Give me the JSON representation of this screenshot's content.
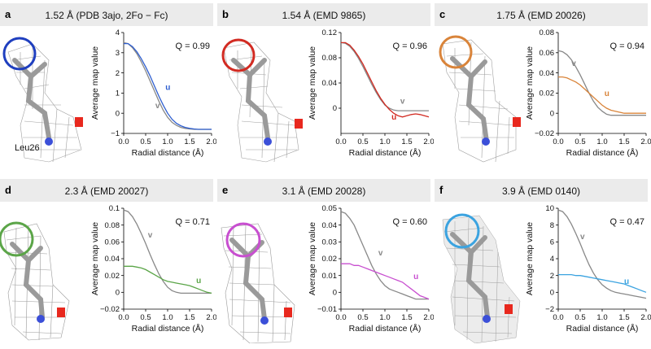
{
  "panels": [
    {
      "letter": "a",
      "title": "1.52 Å (PDB 3ajo, 2Fo − Fc)",
      "residue_label": "Leu26",
      "circle_color": "#1f3fbf",
      "chart_data": {
        "type": "line",
        "xlabel": "Radial distance (Å)",
        "ylabel": "Average map value",
        "xlim": [
          0,
          2
        ],
        "ylim": [
          -1,
          4
        ],
        "xticks": [
          "0.0",
          "0.5",
          "1.0",
          "1.5",
          "2.0"
        ],
        "yticks": [
          "−1",
          "0",
          "1",
          "2",
          "3",
          "4"
        ],
        "q_label": "Q = 0.99",
        "series": [
          {
            "name": "v",
            "color": "#888888",
            "x": [
              0,
              0.1,
              0.2,
              0.3,
              0.4,
              0.5,
              0.6,
              0.7,
              0.8,
              0.9,
              1.0,
              1.1,
              1.2,
              1.3,
              1.4,
              1.5,
              1.6,
              1.7,
              1.8,
              1.9,
              2.0
            ],
            "y": [
              3.5,
              3.45,
              3.25,
              2.95,
              2.55,
              2.1,
              1.6,
              1.1,
              0.6,
              0.15,
              -0.2,
              -0.45,
              -0.6,
              -0.7,
              -0.75,
              -0.78,
              -0.8,
              -0.8,
              -0.8,
              -0.8,
              -0.8
            ],
            "label_x": 0.72,
            "label_y": 0.25
          },
          {
            "name": "u",
            "color": "#2f5fd0",
            "x": [
              0,
              0.1,
              0.2,
              0.3,
              0.4,
              0.5,
              0.6,
              0.7,
              0.8,
              0.9,
              1.0,
              1.1,
              1.2,
              1.3,
              1.4,
              1.5,
              1.6,
              1.7,
              1.8,
              1.9,
              2.0
            ],
            "y": [
              3.45,
              3.45,
              3.3,
              3.05,
              2.7,
              2.3,
              1.85,
              1.35,
              0.85,
              0.4,
              0.0,
              -0.3,
              -0.5,
              -0.62,
              -0.7,
              -0.75,
              -0.78,
              -0.8,
              -0.8,
              -0.8,
              -0.8
            ],
            "label_x": 0.95,
            "label_y": 1.15
          }
        ]
      }
    },
    {
      "letter": "b",
      "title": "1.54 Å (EMD 9865)",
      "circle_color": "#d22b22",
      "chart_data": {
        "type": "line",
        "xlabel": "Radial distance (Å)",
        "ylabel": "Average map value",
        "xlim": [
          0,
          2
        ],
        "ylim": [
          -0.04,
          0.12
        ],
        "xticks": [
          "0.0",
          "0.5",
          "1.0",
          "1.5",
          "2.0"
        ],
        "yticks": [
          "0",
          "0.04",
          "0.08",
          "0.12"
        ],
        "ytick_values": [
          0,
          0.04,
          0.08,
          0.12
        ],
        "q_label": "Q = 0.96",
        "series": [
          {
            "name": "v",
            "color": "#888888",
            "x": [
              0,
              0.1,
              0.2,
              0.3,
              0.4,
              0.5,
              0.6,
              0.7,
              0.8,
              0.9,
              1.0,
              1.1,
              1.2,
              1.3,
              1.4,
              1.5,
              1.6,
              1.7,
              1.8,
              1.9,
              2.0
            ],
            "y": [
              0.104,
              0.103,
              0.098,
              0.09,
              0.079,
              0.066,
              0.052,
              0.038,
              0.025,
              0.014,
              0.005,
              0.0,
              -0.003,
              -0.004,
              -0.004,
              -0.004,
              -0.004,
              -0.004,
              -0.004,
              -0.004,
              -0.004
            ],
            "label_x": 1.35,
            "label_y": 0.007
          },
          {
            "name": "u",
            "color": "#d22b22",
            "x": [
              0,
              0.1,
              0.2,
              0.3,
              0.4,
              0.5,
              0.6,
              0.7,
              0.8,
              0.9,
              1.0,
              1.1,
              1.2,
              1.3,
              1.4,
              1.5,
              1.6,
              1.7,
              1.8,
              1.9,
              2.0
            ],
            "y": [
              0.104,
              0.104,
              0.1,
              0.092,
              0.082,
              0.07,
              0.056,
              0.042,
              0.028,
              0.016,
              0.006,
              -0.002,
              -0.008,
              -0.012,
              -0.014,
              -0.012,
              -0.01,
              -0.009,
              -0.01,
              -0.012,
              -0.014
            ],
            "label_x": 1.15,
            "label_y": -0.018
          }
        ]
      }
    },
    {
      "letter": "c",
      "title": "1.75 Å (EMD 20026)",
      "circle_color": "#d9843a",
      "chart_data": {
        "type": "line",
        "xlabel": "Radial distance (Å)",
        "ylabel": "Average map value",
        "xlim": [
          0,
          2
        ],
        "ylim": [
          -0.02,
          0.08
        ],
        "xticks": [
          "0.0",
          "0.5",
          "1.0",
          "1.5",
          "2.0"
        ],
        "yticks": [
          "−0.02",
          "0",
          "0.02",
          "0.04",
          "0.06",
          "0.08"
        ],
        "ytick_values": [
          -0.02,
          0,
          0.02,
          0.04,
          0.06,
          0.08
        ],
        "q_label": "Q = 0.94",
        "series": [
          {
            "name": "v",
            "color": "#888888",
            "x": [
              0,
              0.1,
              0.2,
              0.3,
              0.4,
              0.5,
              0.6,
              0.7,
              0.8,
              0.9,
              1.0,
              1.1,
              1.2,
              1.3,
              1.4,
              1.5,
              1.6,
              1.7,
              1.8,
              1.9,
              2.0
            ],
            "y": [
              0.062,
              0.061,
              0.058,
              0.053,
              0.046,
              0.038,
              0.029,
              0.02,
              0.012,
              0.006,
              0.002,
              -0.001,
              -0.002,
              -0.002,
              -0.002,
              -0.002,
              -0.002,
              -0.002,
              -0.002,
              -0.002,
              -0.002
            ],
            "label_x": 0.3,
            "label_y": 0.047
          },
          {
            "name": "u",
            "color": "#d9843a",
            "x": [
              0,
              0.1,
              0.2,
              0.3,
              0.4,
              0.5,
              0.6,
              0.7,
              0.8,
              0.9,
              1.0,
              1.1,
              1.2,
              1.3,
              1.4,
              1.5,
              1.6,
              1.7,
              1.8,
              1.9,
              2.0
            ],
            "y": [
              0.036,
              0.036,
              0.035,
              0.033,
              0.031,
              0.028,
              0.024,
              0.02,
              0.016,
              0.012,
              0.008,
              0.005,
              0.003,
              0.002,
              0.001,
              0.0,
              0.0,
              0.0,
              0.0,
              0.0,
              0.0
            ],
            "label_x": 1.05,
            "label_y": 0.017
          }
        ]
      }
    },
    {
      "letter": "d",
      "title": "2.3 Å (EMD 20027)",
      "circle_color": "#5ba548",
      "chart_data": {
        "type": "line",
        "xlabel": "Radial distance (Å)",
        "ylabel": "Average map value",
        "xlim": [
          0,
          2
        ],
        "ylim": [
          -0.02,
          0.1
        ],
        "xticks": [
          "0.0",
          "0.5",
          "1.0",
          "1.5",
          "2.0"
        ],
        "yticks": [
          "−0.02",
          "0",
          "0.02",
          "0.04",
          "0.06",
          "0.08",
          "0.1"
        ],
        "ytick_values": [
          -0.02,
          0,
          0.02,
          0.04,
          0.06,
          0.08,
          0.1
        ],
        "q_label": "Q = 0.71",
        "series": [
          {
            "name": "v",
            "color": "#888888",
            "x": [
              0,
              0.1,
              0.2,
              0.3,
              0.4,
              0.5,
              0.6,
              0.7,
              0.8,
              0.9,
              1.0,
              1.1,
              1.2,
              1.3,
              1.4,
              1.5,
              1.6,
              1.7,
              1.8,
              1.9,
              2.0
            ],
            "y": [
              0.098,
              0.096,
              0.09,
              0.081,
              0.07,
              0.058,
              0.045,
              0.033,
              0.022,
              0.013,
              0.006,
              0.002,
              0.0,
              -0.001,
              -0.001,
              -0.001,
              -0.001,
              -0.001,
              -0.001,
              -0.001,
              -0.001
            ],
            "label_x": 0.55,
            "label_y": 0.065
          },
          {
            "name": "u",
            "color": "#5ba548",
            "x": [
              0,
              0.1,
              0.2,
              0.3,
              0.4,
              0.5,
              0.6,
              0.7,
              0.8,
              0.9,
              1.0,
              1.1,
              1.2,
              1.3,
              1.4,
              1.5,
              1.6,
              1.7,
              1.8,
              1.9,
              2.0
            ],
            "y": [
              0.031,
              0.031,
              0.031,
              0.03,
              0.029,
              0.027,
              0.024,
              0.021,
              0.018,
              0.015,
              0.013,
              0.012,
              0.011,
              0.01,
              0.009,
              0.008,
              0.006,
              0.004,
              0.002,
              0.0,
              -0.001
            ],
            "label_x": 1.65,
            "label_y": 0.011
          }
        ]
      }
    },
    {
      "letter": "e",
      "title": "3.1 Å (EMD 20028)",
      "circle_color": "#c84fd0",
      "chart_data": {
        "type": "line",
        "xlabel": "Radial distance (Å)",
        "ylabel": "Average map value",
        "xlim": [
          0,
          2
        ],
        "ylim": [
          -0.01,
          0.05
        ],
        "xticks": [
          "0.0",
          "0.5",
          "1.0",
          "1.5",
          "2.0"
        ],
        "yticks": [
          "−0.01",
          "0",
          "0.01",
          "0.02",
          "0.03",
          "0.04",
          "0.05"
        ],
        "ytick_values": [
          -0.01,
          0,
          0.01,
          0.02,
          0.03,
          0.04,
          0.05
        ],
        "q_label": "Q = 0.60",
        "series": [
          {
            "name": "v",
            "color": "#888888",
            "x": [
              0,
              0.1,
              0.2,
              0.3,
              0.4,
              0.5,
              0.6,
              0.7,
              0.8,
              0.9,
              1.0,
              1.1,
              1.2,
              1.3,
              1.4,
              1.5,
              1.6,
              1.7,
              1.8,
              1.9,
              2.0
            ],
            "y": [
              0.048,
              0.047,
              0.044,
              0.04,
              0.034,
              0.028,
              0.022,
              0.016,
              0.011,
              0.007,
              0.004,
              0.002,
              0.001,
              0.0,
              -0.001,
              -0.002,
              -0.003,
              -0.004,
              -0.004,
              -0.004,
              -0.004
            ],
            "label_x": 0.85,
            "label_y": 0.022
          },
          {
            "name": "u",
            "color": "#c84fd0",
            "x": [
              0,
              0.1,
              0.2,
              0.3,
              0.4,
              0.5,
              0.6,
              0.7,
              0.8,
              0.9,
              1.0,
              1.1,
              1.2,
              1.3,
              1.4,
              1.5,
              1.6,
              1.7,
              1.8,
              1.9,
              2.0
            ],
            "y": [
              0.017,
              0.017,
              0.017,
              0.016,
              0.016,
              0.015,
              0.014,
              0.013,
              0.012,
              0.011,
              0.01,
              0.009,
              0.008,
              0.007,
              0.006,
              0.004,
              0.002,
              0.0,
              -0.002,
              -0.003,
              -0.004
            ],
            "label_x": 1.65,
            "label_y": 0.008
          }
        ]
      }
    },
    {
      "letter": "f",
      "title": "3.9 Å (EMD 0140)",
      "circle_color": "#3ba3e0",
      "chart_data": {
        "type": "line",
        "xlabel": "Radial distance (Å)",
        "ylabel": "Average map value",
        "xlim": [
          0,
          2
        ],
        "ylim": [
          -2,
          10
        ],
        "xticks": [
          "0.0",
          "0.5",
          "1.0",
          "1.5",
          "2.0"
        ],
        "yticks": [
          "−2",
          "0",
          "2",
          "4",
          "6",
          "8",
          "10"
        ],
        "ytick_values": [
          -2,
          0,
          2,
          4,
          6,
          8,
          10
        ],
        "q_label": "Q = 0.47",
        "series": [
          {
            "name": "v",
            "color": "#888888",
            "x": [
              0,
              0.1,
              0.2,
              0.3,
              0.4,
              0.5,
              0.6,
              0.7,
              0.8,
              0.9,
              1.0,
              1.1,
              1.2,
              1.3,
              1.4,
              1.5,
              1.6,
              1.7,
              1.8,
              1.9,
              2.0
            ],
            "y": [
              9.8,
              9.6,
              9.0,
              8.1,
              7.0,
              5.8,
              4.5,
              3.3,
              2.3,
              1.5,
              0.9,
              0.5,
              0.2,
              0.0,
              -0.1,
              -0.2,
              -0.3,
              -0.4,
              -0.5,
              -0.6,
              -0.7
            ],
            "label_x": 0.5,
            "label_y": 6.3
          },
          {
            "name": "u",
            "color": "#3ba3e0",
            "x": [
              0,
              0.1,
              0.2,
              0.3,
              0.4,
              0.5,
              0.6,
              0.7,
              0.8,
              0.9,
              1.0,
              1.1,
              1.2,
              1.3,
              1.4,
              1.5,
              1.6,
              1.7,
              1.8,
              1.9,
              2.0
            ],
            "y": [
              2.1,
              2.1,
              2.1,
              2.1,
              2.0,
              2.0,
              1.9,
              1.8,
              1.7,
              1.6,
              1.5,
              1.4,
              1.3,
              1.2,
              1.1,
              1.0,
              0.8,
              0.6,
              0.4,
              0.2,
              0.0
            ],
            "label_x": 1.5,
            "label_y": 1.0
          }
        ]
      }
    }
  ]
}
